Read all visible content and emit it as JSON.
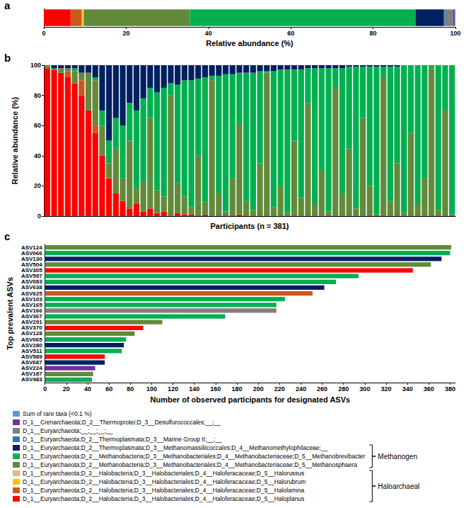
{
  "chart_data": [
    {
      "title": "a",
      "type": "bar",
      "orientation": "horizontal",
      "stacked": true,
      "grid": false,
      "tick_labels": "x",
      "x_label": "Relative abundance (%)",
      "xlim": [
        0,
        100
      ],
      "xticks": [
        0,
        20,
        40,
        60,
        80,
        100
      ],
      "legend": "bottom",
      "series": [
        {
          "name": "D_1__Euryarchaeota;D_2__Halobacteria;D_3__Halobacteriales;D_4__Haloferacaceae;D_5__Haloplanus",
          "color": "#ff0000",
          "values": [
            6.5
          ]
        },
        {
          "name": "D_1__Euryarchaeota;D_2__Halobacteria;D_3__Halobacteriales;D_4__Haloferacaceae;D_5__Halolamina",
          "color": "#c9581a",
          "values": [
            2.7
          ]
        },
        {
          "name": "D_1__Euryarchaeota;D_2__Halobacteria;D_3__Halobacteriales;D_4__Haloferacaceae;D_5__Halorubrum",
          "color": "#ffc000",
          "values": [
            0.3
          ]
        },
        {
          "name": "D_1__Euryarchaeota;D_2__Halobacteria;D_3__Halobacteriales;D_4__Haloferacaceae;D_5__Halorussus",
          "color": "#f4b183",
          "values": [
            0.2
          ]
        },
        {
          "name": "D_1__Euryarchaeota;D_2__Methanobacteria;D_3__Methanobacteriales;D_4__Methanobacteriaceae;D_5__Methanosphaera",
          "color": "#628a3a",
          "values": [
            25.8
          ]
        },
        {
          "name": "D_1__Euryarchaeota;D_2__Methanobacteria;D_3__Methanobacteriales;D_4__Methanobacteriaceae;D_5__Methanobrevibacter",
          "color": "#00b050",
          "values": [
            54.8
          ]
        },
        {
          "name": "D_1__Euryarchaeota;D_2__Thermoplasmata;D_3__Methanomassiliicoccales;D_4__Methanomethylophilaceae;__",
          "color": "#002060",
          "values": [
            6.9
          ]
        },
        {
          "name": "D_1__Euryarchaeota;D_2__Thermoplasmata;D_3__Marine Group II;__;__",
          "color": "#2e75b6",
          "values": [
            0.2
          ]
        },
        {
          "name": "D_1__Euryarchaeota;__;__;__;__",
          "color": "#7f7f7f",
          "values": [
            2.0
          ]
        },
        {
          "name": "D_1__Crenarchaeota;D_2__Thermoprotei;D_3__Desulfurococcales;__;__",
          "color": "#7030a0",
          "values": [
            0.4
          ]
        },
        {
          "name": "Sum of rare taxa (<0.1 %)",
          "color": "#5b9bd5",
          "values": [
            0.2
          ]
        }
      ],
      "annotations": [
        {
          "text": "Methanogen",
          "series": [
            "D_1__Euryarchaeota;D_2__Thermoplasmata;D_3__Methanomassiliicoccales;D_4__Methanomethylophilaceae;__",
            "D_1__Euryarchaeota;D_2__Methanobacteria;D_3__Methanobacteriales;D_4__Methanobacteriaceae;D_5__Methanobrevibacter",
            "D_1__Euryarchaeota;D_2__Methanobacteria;D_3__Methanobacteriales;D_4__Methanobacteriaceae;D_5__Methanosphaera"
          ]
        },
        {
          "text": "Haloarchaeal",
          "series": [
            "D_1__Euryarchaeota;D_2__Halobacteria;D_3__Halobacteriales;D_4__Haloferacaceae;D_5__Halorussus",
            "D_1__Euryarchaeota;D_2__Halobacteria;D_3__Halobacteriales;D_4__Haloferacaceae;D_5__Halorubrum",
            "D_1__Euryarchaeota;D_2__Halobacteria;D_3__Halobacteriales;D_4__Haloferacaceae;D_5__Halolamina",
            "D_1__Euryarchaeota;D_2__Halobacteria;D_3__Halobacteriales;D_4__Haloferacaceae;D_5__Haloplanus"
          ]
        }
      ]
    },
    {
      "title": "b",
      "type": "bar",
      "stacked": true,
      "grid": false,
      "tick_labels": "y",
      "x_label": "Participants (n = 381)",
      "y_label": "Relative abundance (%)",
      "ylim": [
        0,
        100
      ],
      "yticks": [
        0,
        20,
        40,
        60,
        80,
        100
      ],
      "categories": [
        null,
        null,
        null,
        null,
        null,
        null,
        null,
        null,
        null,
        null,
        null,
        null,
        null,
        null,
        null,
        null,
        null,
        null,
        null,
        null,
        null,
        null,
        null,
        null,
        null,
        null,
        null,
        null,
        null,
        null,
        null,
        null,
        null,
        null,
        null,
        null,
        null,
        null,
        null,
        null,
        null,
        null,
        null,
        null,
        null,
        null,
        null,
        null,
        null,
        null,
        null,
        null,
        null,
        null,
        null,
        null,
        null,
        null,
        null,
        null
      ],
      "series": [
        {
          "name": "D_1__Euryarchaeota;D_2__Halobacteria;D_3__Halobacteriales;D_4__Haloferacaceae;D_5__Haloplanus",
          "color": "#ff0000",
          "values": [
            98,
            97,
            95,
            92,
            88,
            80,
            70,
            55,
            40,
            25,
            15,
            10,
            5,
            8,
            3,
            5,
            2,
            3,
            0,
            2,
            1,
            1,
            0,
            1,
            0,
            0,
            0,
            0,
            1,
            0,
            0,
            0,
            0,
            0,
            0,
            0,
            0,
            0,
            0,
            0,
            0,
            0,
            0,
            0,
            0,
            0,
            0,
            0,
            0,
            0,
            0,
            0,
            0,
            0,
            0,
            0,
            0,
            0,
            0,
            0
          ]
        },
        {
          "name": "D_1__Euryarchaeota;D_2__Halobacteria;D_3__Halobacteriales;D_4__Haloferacaceae;D_5__Halolamina",
          "color": "#c9581a",
          "values": [
            0,
            0,
            0,
            4,
            0,
            10,
            0,
            5,
            0,
            0,
            0,
            0,
            0,
            0,
            0,
            0,
            0,
            0,
            0,
            0,
            0,
            0,
            0,
            0,
            0,
            0,
            0,
            0,
            0,
            0,
            0,
            0,
            0,
            0,
            0,
            0,
            0,
            0,
            0,
            0,
            0,
            0,
            0,
            0,
            0,
            0,
            0,
            0,
            0,
            0,
            0,
            0,
            0,
            0,
            0,
            0,
            0,
            0,
            0,
            0
          ]
        },
        {
          "name": "D_1__Euryarchaeota;D_2__Methanobacteria;D_3__Methanobacteriales;D_4__Methanobacteriaceae;D_5__Methanosphaera",
          "color": "#628a3a",
          "values": [
            2,
            0,
            3,
            2,
            8,
            5,
            25,
            30,
            20,
            10,
            30,
            15,
            45,
            10,
            20,
            60,
            15,
            10,
            80,
            20,
            12,
            5,
            40,
            8,
            90,
            15,
            3,
            25,
            60,
            10,
            4,
            35,
            95,
            6,
            20,
            2,
            50,
            12,
            75,
            8,
            30,
            3,
            85,
            15,
            45,
            5,
            65,
            20,
            1,
            92,
            10,
            35,
            2,
            55,
            8,
            25,
            98,
            4,
            70,
            1
          ]
        },
        {
          "name": "D_1__Euryarchaeota;D_2__Methanobacteria;D_3__Methanobacteriales;D_4__Methanobacteriaceae;D_5__Methanobrevibacter",
          "color": "#00b050",
          "values": [
            0,
            1,
            0,
            0,
            2,
            0,
            0,
            2,
            10,
            15,
            20,
            35,
            25,
            52,
            55,
            20,
            65,
            72,
            8,
            65,
            77,
            84,
            51,
            83,
            3,
            78,
            91,
            69,
            34,
            85,
            91,
            61,
            1,
            90,
            77,
            95,
            47,
            85,
            23,
            90,
            68,
            95,
            13,
            83,
            54,
            94,
            34,
            79,
            98,
            7,
            89,
            64,
            98,
            45,
            92,
            75,
            2,
            96,
            30,
            99
          ]
        },
        {
          "name": "D_1__Euryarchaeota;D_2__Thermoplasmata;D_3__Methanomassiliicoccales;D_4__Methanomethylophilaceae;__",
          "color": "#002060",
          "values": [
            0,
            2,
            2,
            2,
            2,
            5,
            5,
            8,
            30,
            50,
            35,
            40,
            25,
            30,
            22,
            15,
            18,
            15,
            12,
            13,
            10,
            10,
            9,
            8,
            7,
            7,
            6,
            6,
            5,
            5,
            5,
            4,
            4,
            4,
            3,
            3,
            3,
            3,
            2,
            2,
            2,
            2,
            2,
            2,
            1,
            1,
            1,
            1,
            1,
            1,
            1,
            1,
            0,
            0,
            0,
            0,
            0,
            0,
            0,
            0
          ]
        }
      ]
    },
    {
      "title": "c",
      "type": "bar",
      "orientation": "horizontal",
      "grid": false,
      "x_label": "Number of observed participants for designated ASVs",
      "y_label": "Top prevalent ASVs",
      "xlim": [
        0,
        385
      ],
      "xticks": [
        0,
        20,
        40,
        60,
        80,
        100,
        120,
        140,
        160,
        180,
        200,
        220,
        240,
        260,
        280,
        300,
        320,
        340,
        360,
        380
      ],
      "categories": [
        "ASV124",
        "ASV066",
        "ASV130",
        "ASV504",
        "ASV305",
        "ASV597",
        "ASV083",
        "ASV638",
        "ASV625",
        "ASV103",
        "ASV165",
        "ASV166",
        "ASV367",
        "ASV291",
        "ASV370",
        "ASV128",
        "ASV065",
        "ASV280",
        "ASV511",
        "ASV589",
        "ASV687",
        "ASV224",
        "ASV187",
        "ASV483"
      ],
      "values": [
        381,
        380,
        372,
        362,
        345,
        294,
        273,
        262,
        251,
        225,
        217,
        217,
        169,
        110,
        92,
        84,
        76,
        74,
        72,
        56,
        56,
        47,
        45,
        44
      ],
      "colors": [
        "#628a3a",
        "#00b050",
        "#002060",
        "#628a3a",
        "#ff0000",
        "#00b050",
        "#00b050",
        "#002060",
        "#c9581a",
        "#00b050",
        "#00b050",
        "#7f7f7f",
        "#00b050",
        "#628a3a",
        "#ff0000",
        "#628a3a",
        "#00b050",
        "#002060",
        "#00b050",
        "#ff0000",
        "#002060",
        "#7030a0",
        "#628a3a",
        "#00b050"
      ]
    }
  ]
}
